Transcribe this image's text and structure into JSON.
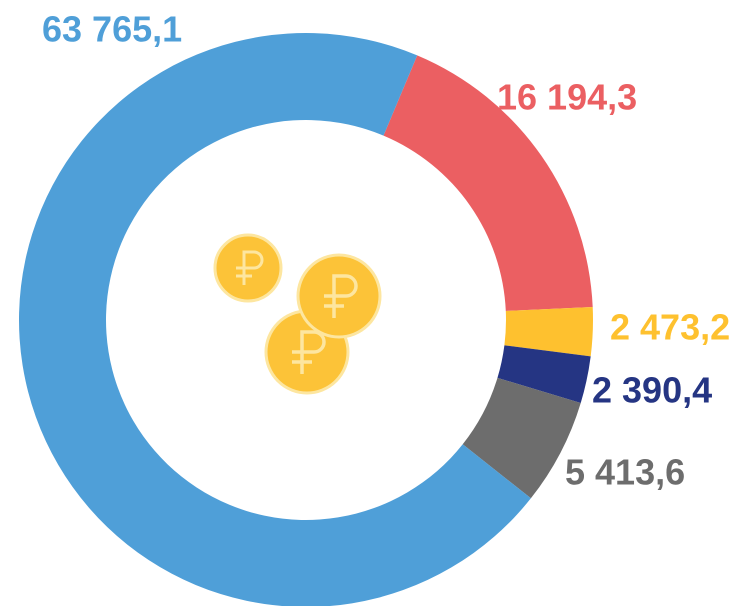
{
  "chart_data": {
    "type": "donut",
    "values": [
      63765.1,
      16194.3,
      2473.2,
      2390.4,
      5413.6
    ],
    "value_labels": [
      "63 765,1",
      "16 194,3",
      "2 473,2",
      "2 390,4",
      "5 413,6"
    ],
    "colors": [
      "#4f9fd8",
      "#eb5f62",
      "#fec12f",
      "#253583",
      "#6d6d6d"
    ]
  }
}
